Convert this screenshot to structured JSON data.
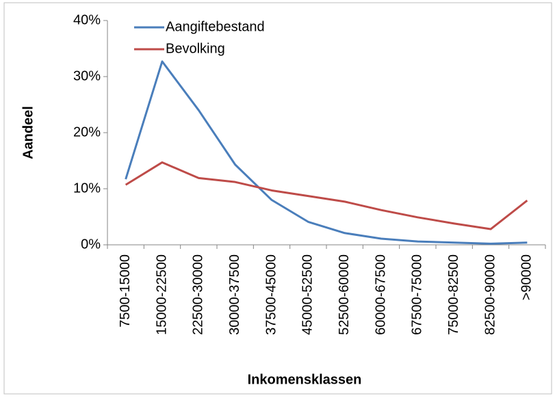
{
  "chart_data": {
    "type": "line",
    "x_label": "Inkomensklassen",
    "y_label": "Aandeel",
    "categories": [
      "7500-15000",
      "15000-22500",
      "22500-30000",
      "30000-37500",
      "37500-45000",
      "45000-52500",
      "52500-60000",
      "60000-67500",
      "67500-75000",
      "75000-82500",
      "82500-90000",
      ">90000"
    ],
    "series": [
      {
        "name": "Aangiftebestand",
        "color": "#4a7ebb",
        "values": [
          11.7,
          32.7,
          24,
          14.3,
          8,
          4.1,
          2.1,
          1.1,
          0.6,
          0.4,
          0.2,
          0.4
        ]
      },
      {
        "name": "Bevolking",
        "color": "#be4b48",
        "values": [
          10.7,
          14.7,
          11.9,
          11.2,
          9.7,
          8.7,
          7.7,
          6.2,
          4.9,
          3.8,
          2.8,
          7.9
        ]
      }
    ],
    "ylim": [
      0,
      40
    ],
    "yticks": [
      {
        "value": 0,
        "label": "0%"
      },
      {
        "value": 10,
        "label": "10%"
      },
      {
        "value": 20,
        "label": "20%"
      },
      {
        "value": 30,
        "label": "30%"
      },
      {
        "value": 40,
        "label": "40%"
      }
    ],
    "grid": false,
    "legend": "top-left"
  }
}
